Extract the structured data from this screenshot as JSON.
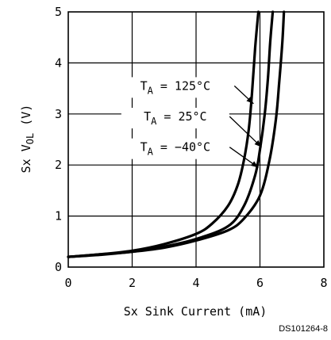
{
  "chart_data": {
    "type": "line",
    "xlabel": "Sx Sink Current (mA)",
    "ylabel": "Sx V",
    "ylabel_sub": "OL",
    "ylabel_unit": " (V)",
    "xlim": [
      0,
      8
    ],
    "ylim": [
      0,
      5
    ],
    "x_ticks": [
      "0",
      "2",
      "4",
      "6",
      "8"
    ],
    "y_ticks": [
      "0",
      "1",
      "2",
      "3",
      "4",
      "5"
    ],
    "grid": true,
    "figure_id": "DS101264-8",
    "series": [
      {
        "annotation": {
          "sym": "T",
          "sub": "A",
          "value": " = 125°C"
        },
        "x": [
          0,
          1,
          2,
          3,
          4,
          4.5,
          5,
          5.3,
          5.5,
          5.65,
          5.75,
          5.85,
          5.95
        ],
        "y": [
          0.2,
          0.25,
          0.32,
          0.45,
          0.65,
          0.85,
          1.2,
          1.6,
          2.1,
          2.7,
          3.4,
          4.3,
          5.0
        ]
      },
      {
        "annotation": {
          "sym": "T",
          "sub": "A",
          "value": " = 25°C"
        },
        "x": [
          0,
          1,
          2,
          3,
          4,
          5,
          5.5,
          5.85,
          6.0,
          6.15,
          6.25,
          6.32,
          6.4
        ],
        "y": [
          0.2,
          0.25,
          0.3,
          0.4,
          0.55,
          0.8,
          1.2,
          1.8,
          2.3,
          3.0,
          3.7,
          4.4,
          5.0
        ]
      },
      {
        "annotation": {
          "sym": "T",
          "sub": "A",
          "value": " = −40°C"
        },
        "x": [
          0,
          1,
          2,
          3,
          4,
          5,
          5.5,
          6.0,
          6.3,
          6.5,
          6.6,
          6.7,
          6.75
        ],
        "y": [
          0.2,
          0.24,
          0.3,
          0.38,
          0.52,
          0.72,
          0.95,
          1.4,
          2.1,
          2.9,
          3.6,
          4.4,
          5.0
        ]
      }
    ]
  }
}
